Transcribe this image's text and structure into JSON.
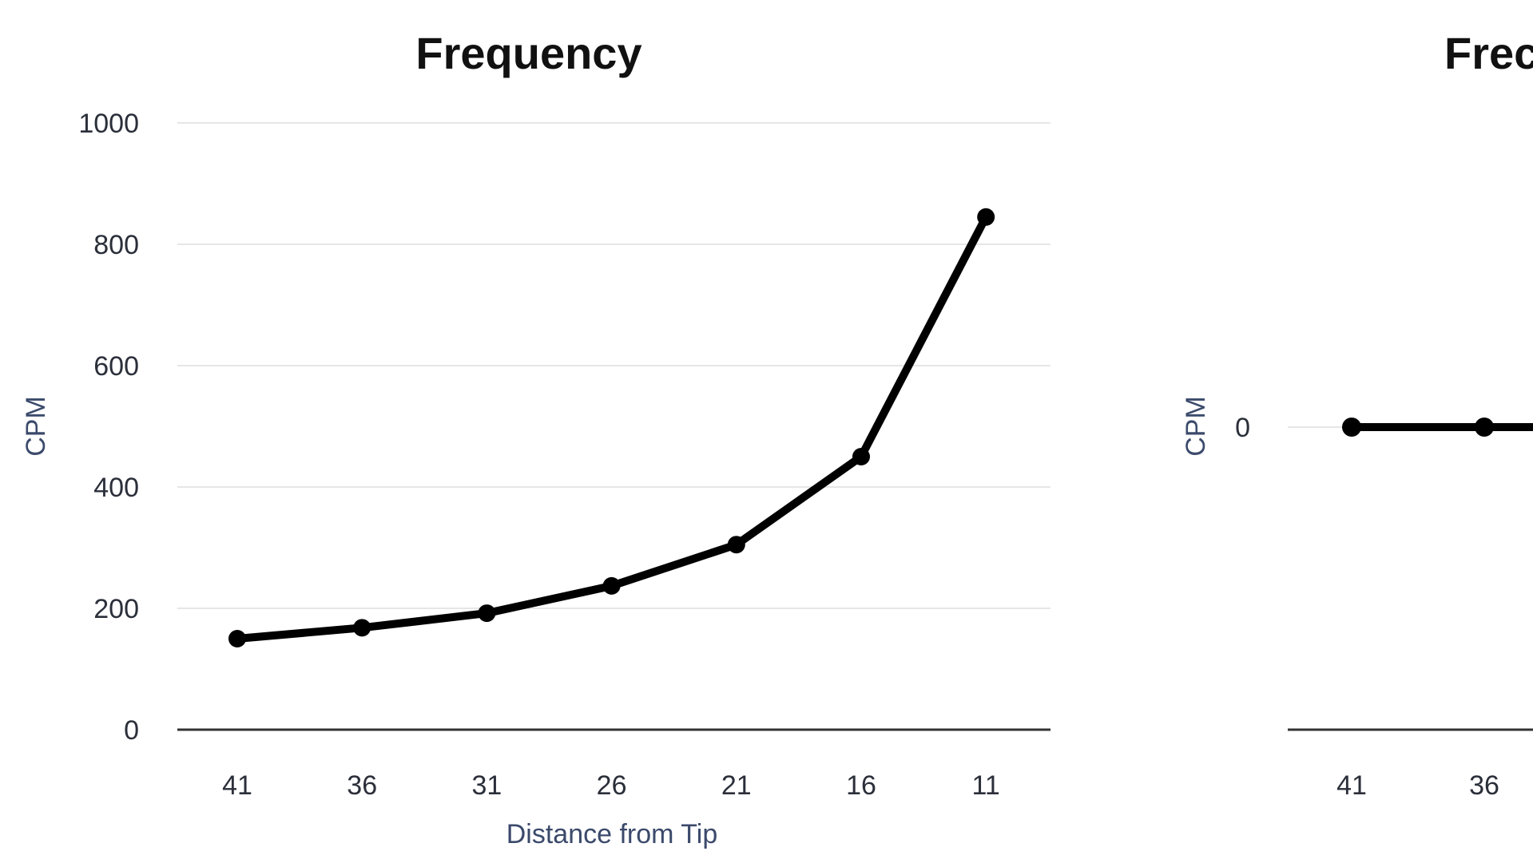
{
  "chart_data": [
    {
      "type": "line",
      "title": "Frequency",
      "xlabel": "Distance from Tip",
      "ylabel": "CPM",
      "categories": [
        "41",
        "36",
        "31",
        "26",
        "21",
        "16",
        "11"
      ],
      "y_ticks": [
        "0",
        "200",
        "400",
        "600",
        "800",
        "1000"
      ],
      "ylim": [
        0,
        1000
      ],
      "grid": true,
      "legend": "none",
      "line_color": "#000000",
      "series": [
        {
          "values": [
            150,
            168,
            192,
            237,
            305,
            450,
            845
          ]
        }
      ]
    },
    {
      "type": "line",
      "title": "Frec",
      "xlabel": "",
      "ylabel": "CPM",
      "categories": [
        "41",
        "36"
      ],
      "y_ticks": [
        "0"
      ],
      "grid": true,
      "legend": "none",
      "line_color": "#000000",
      "series": [
        {
          "values": [
            0,
            0
          ]
        }
      ]
    }
  ]
}
